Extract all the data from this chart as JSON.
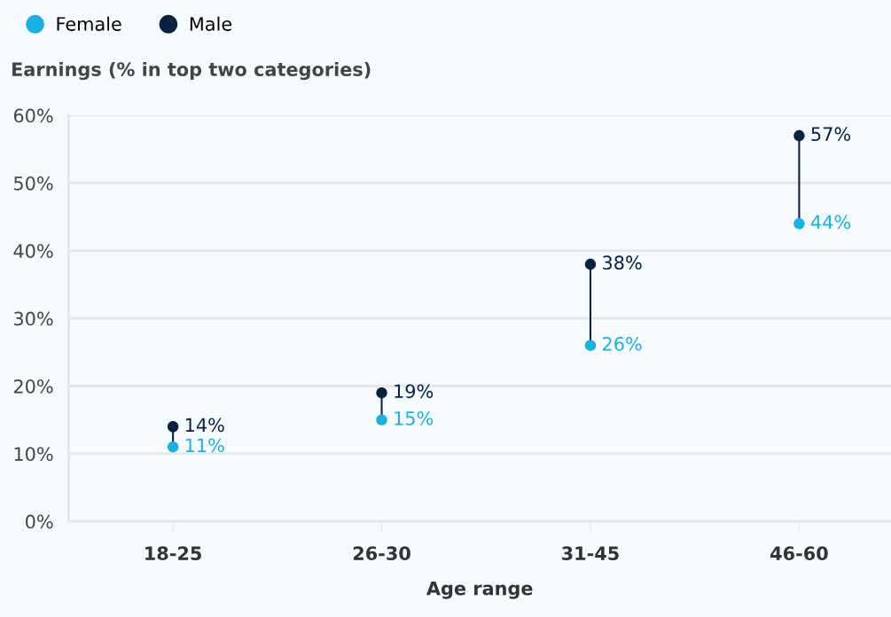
{
  "chart_data": {
    "type": "scatter",
    "title": "Earnings (% in top two categories)",
    "xlabel": "Age range",
    "categories": [
      "18-25",
      "26-30",
      "31-45",
      "46-60"
    ],
    "series": [
      {
        "name": "Female",
        "color": "#1ab0e0",
        "values": [
          11,
          15,
          26,
          44
        ],
        "value_labels": [
          "11%",
          "15%",
          "26%",
          "44%"
        ]
      },
      {
        "name": "Male",
        "color": "#0b2142",
        "values": [
          14,
          19,
          38,
          57
        ],
        "value_labels": [
          "14%",
          "19%",
          "38%",
          "57%"
        ]
      }
    ],
    "ylim": [
      0,
      60
    ],
    "yticks": [
      {
        "value": 0,
        "label": "0%"
      },
      {
        "value": 10,
        "label": "10%"
      },
      {
        "value": 20,
        "label": "20%"
      },
      {
        "value": 30,
        "label": "30%"
      },
      {
        "value": 40,
        "label": "40%"
      },
      {
        "value": 50,
        "label": "50%"
      },
      {
        "value": 60,
        "label": "60%"
      }
    ],
    "grid": "y",
    "legend": "top left",
    "marker": "circle"
  }
}
